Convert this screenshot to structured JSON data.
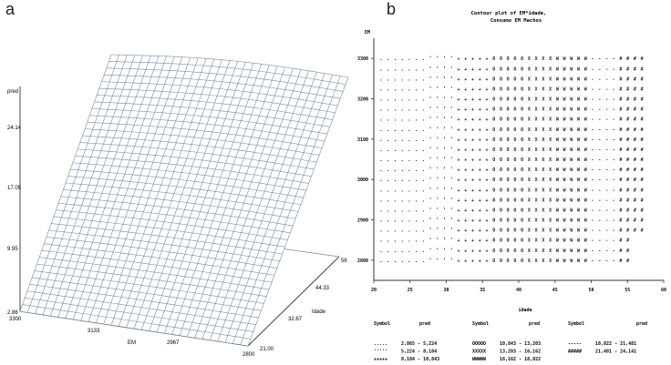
{
  "panels": {
    "a": {
      "letter": "a"
    },
    "b": {
      "letter": "b"
    }
  },
  "chart_data": [
    {
      "panel": "a",
      "type": "surface",
      "zlabel": "pred",
      "xlabel": "EM",
      "ylabel": "Idade",
      "z_ticks": [
        "2.86",
        "9.95",
        "17.05",
        "24.14"
      ],
      "x_ticks": [
        "3300",
        "3133",
        "2967",
        "2800"
      ],
      "y_ticks": [
        "21.00",
        "32.67",
        "44.33",
        "56"
      ],
      "zlim": [
        2.86,
        24.14
      ],
      "xlim": [
        2800,
        3300
      ],
      "ylim": [
        21,
        56
      ]
    },
    {
      "panel": "b",
      "type": "contour",
      "title_line1": "Contour plot of EM*idade,",
      "title_line2": "Consumo EM Machos",
      "ylabel": "EM",
      "xlabel": "idade",
      "y_ticks": [
        "3300",
        "3200",
        "3100",
        "3000",
        "2900",
        "2800"
      ],
      "x_ticks": [
        "20",
        "25",
        "30",
        "35",
        "40",
        "45",
        "50",
        "55",
        "60"
      ],
      "xlim": [
        20,
        60
      ],
      "ylim": [
        2750,
        3350
      ],
      "legend_headers": [
        "Symbol",
        "pred",
        "Symbol",
        "pred",
        "Symbol",
        "pred"
      ],
      "legend": [
        {
          "symbol": ".....",
          "range": "2,865 - 5,224"
        },
        {
          "symbol": "'''''",
          "range": "5,224 - 8,184"
        },
        {
          "symbol": "+++++",
          "range": "8,184 - 10,843"
        },
        {
          "symbol": "OOOOO",
          "range": "10,843 - 13,203"
        },
        {
          "symbol": "XXXXX",
          "range": "13,203 - 16,162"
        },
        {
          "symbol": "WWWWW",
          "range": "16,162 - 18,822"
        },
        {
          "symbol": "-----",
          "range": "18,822 - 21,481"
        },
        {
          "symbol": "#####",
          "range": "21,481 - 24,141"
        }
      ],
      "column_symbols": [
        ".",
        ".",
        ".",
        ".",
        ".",
        ".",
        ".",
        "'",
        "'",
        "'",
        "'",
        "+",
        "+",
        "+",
        "+",
        "+",
        "O",
        "O",
        "O",
        "O",
        "O",
        "X",
        "X",
        "X",
        "X",
        "W",
        "W",
        "W",
        "W",
        "W",
        "-",
        "-",
        "-",
        "-",
        "#",
        "#",
        "#",
        "#"
      ],
      "row_values": [
        3300,
        3275,
        3250,
        3225,
        3200,
        3175,
        3150,
        3125,
        3100,
        3075,
        3050,
        3025,
        3000,
        2975,
        2950,
        2925,
        2900,
        2875,
        2850,
        2825,
        2800
      ]
    }
  ]
}
